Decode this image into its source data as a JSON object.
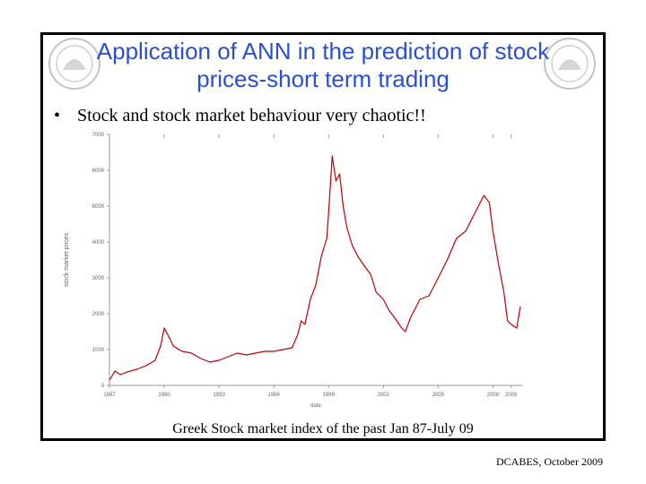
{
  "slide": {
    "title_line1": "Application of ANN in the prediction of stock",
    "title_line2": "prices-short term trading",
    "bullet_symbol": "•",
    "bullet_text": "Stock and stock market behaviour very chaotic!!",
    "caption": "Greek Stock market index of the past Jan 87-July 09",
    "footer": "DCABES, October 2009",
    "seal_icon": "university-seal-icon"
  },
  "chart_data": {
    "type": "line",
    "title": "",
    "xlabel": "date",
    "ylabel": "stock market prices",
    "xticks": [
      "1987",
      "1990",
      "1993",
      "1996",
      "1999",
      "2002",
      "2005",
      "2008",
      "2009"
    ],
    "xtick_positions": [
      1987,
      1990,
      1993,
      1996,
      1999,
      2002,
      2005,
      2008,
      2009
    ],
    "yticks": [
      0,
      1000,
      2000,
      3000,
      4000,
      5000,
      6000,
      7000
    ],
    "xlim": [
      1987,
      2009.6
    ],
    "ylim": [
      0,
      7000
    ],
    "line_color": "#c00000",
    "series": [
      {
        "x": [
          1987.0,
          1987.3,
          1987.6,
          1988.0,
          1988.5,
          1989.0,
          1989.5,
          1989.8,
          1990.0,
          1990.3,
          1990.5,
          1990.8,
          1991.0,
          1991.5,
          1992.0,
          1992.5,
          1993.0,
          1993.5,
          1994.0,
          1994.5,
          1995.0,
          1995.5,
          1996.0,
          1996.5,
          1997.0,
          1997.3,
          1997.5,
          1997.7,
          1998.0,
          1998.3,
          1998.6,
          1998.9,
          1999.0,
          1999.2,
          1999.4,
          1999.6,
          1999.8,
          2000.0,
          2000.3,
          2000.6,
          2001.0,
          2001.3,
          2001.6,
          2002.0,
          2002.3,
          2002.6,
          2003.0,
          2003.2,
          2003.5,
          2004.0,
          2004.5,
          2005.0,
          2005.5,
          2006.0,
          2006.5,
          2007.0,
          2007.5,
          2007.8,
          2008.0,
          2008.3,
          2008.6,
          2008.8,
          2009.0,
          2009.3,
          2009.5
        ],
        "y": [
          150,
          400,
          300,
          380,
          450,
          550,
          700,
          1100,
          1600,
          1300,
          1100,
          1000,
          950,
          900,
          750,
          650,
          700,
          800,
          900,
          850,
          900,
          950,
          950,
          1000,
          1050,
          1400,
          1800,
          1700,
          2400,
          2800,
          3600,
          4100,
          4800,
          6400,
          5700,
          5900,
          5000,
          4400,
          3900,
          3600,
          3300,
          3100,
          2600,
          2400,
          2100,
          1900,
          1600,
          1500,
          1900,
          2400,
          2500,
          3000,
          3500,
          4100,
          4300,
          4800,
          5300,
          5100,
          4300,
          3400,
          2600,
          1800,
          1700,
          1600,
          2200
        ]
      }
    ]
  }
}
